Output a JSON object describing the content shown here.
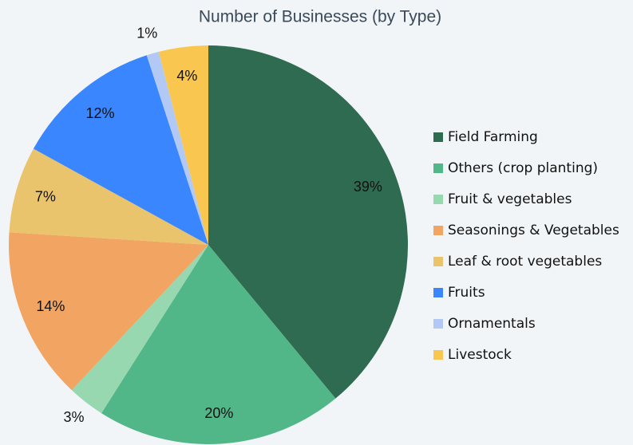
{
  "chart_data": {
    "type": "pie",
    "title": "Number of Businesses (by Type)",
    "categories": [
      "Field Farming",
      "Others (crop planting)",
      "Fruit & vegetables",
      "Seasonings & Vegetables",
      "Leaf & root vegetables",
      "Fruits",
      "Ornamentals",
      "Livestock"
    ],
    "values": [
      39,
      20,
      3,
      14,
      7,
      12,
      1,
      4
    ],
    "value_labels": [
      "39%",
      "20%",
      "3%",
      "14%",
      "7%",
      "12%",
      "1%",
      "4%"
    ],
    "colors": [
      "#2e6b50",
      "#52b788",
      "#98d8b0",
      "#f2a462",
      "#e9c46c",
      "#3a86ff",
      "#b3c9f5",
      "#f9c74f"
    ],
    "legend": "right"
  }
}
